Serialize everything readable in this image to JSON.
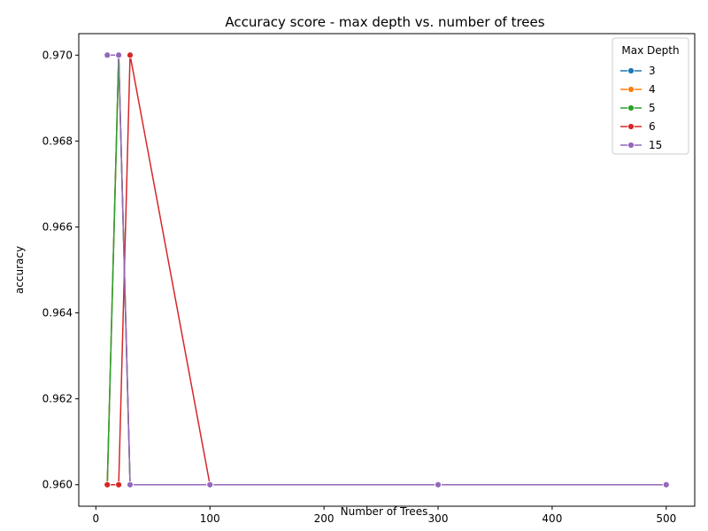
{
  "chart_data": {
    "type": "line",
    "title": "Accuracy score - max depth vs. number of trees",
    "xlabel": "Number of Trees",
    "ylabel": "accuracy",
    "xlim": [
      -15,
      525
    ],
    "ylim": [
      0.9595,
      0.9705
    ],
    "x_ticks": [
      0,
      100,
      200,
      300,
      400,
      500
    ],
    "y_ticks": [
      0.96,
      0.962,
      0.964,
      0.966,
      0.968,
      0.97
    ],
    "y_tick_labels": [
      "0.960",
      "0.962",
      "0.964",
      "0.966",
      "0.968",
      "0.970"
    ],
    "grid": false,
    "legend": {
      "title": "Max Depth",
      "placement": "top-right"
    },
    "series": [
      {
        "name": "3",
        "color": "#1f77b4",
        "x": [
          10,
          20,
          30,
          100,
          300,
          500
        ],
        "y": [
          0.96,
          0.97,
          0.96,
          0.96,
          0.96,
          0.96
        ]
      },
      {
        "name": "4",
        "color": "#ff7f0e",
        "x": [
          10,
          20,
          30,
          100,
          300,
          500
        ],
        "y": [
          0.96,
          0.97,
          0.96,
          0.96,
          0.96,
          0.96
        ]
      },
      {
        "name": "5",
        "color": "#2ca02c",
        "x": [
          10,
          20,
          30,
          100,
          300,
          500
        ],
        "y": [
          0.96,
          0.97,
          0.96,
          0.96,
          0.96,
          0.96
        ]
      },
      {
        "name": "6",
        "color": "#d62728",
        "x": [
          10,
          20,
          30,
          100,
          300,
          500
        ],
        "y": [
          0.96,
          0.96,
          0.97,
          0.96,
          0.96,
          0.96
        ]
      },
      {
        "name": "15",
        "color": "#9467bd",
        "x": [
          10,
          20,
          30,
          100,
          300,
          500
        ],
        "y": [
          0.97,
          0.97,
          0.96,
          0.96,
          0.96,
          0.96
        ]
      }
    ]
  }
}
